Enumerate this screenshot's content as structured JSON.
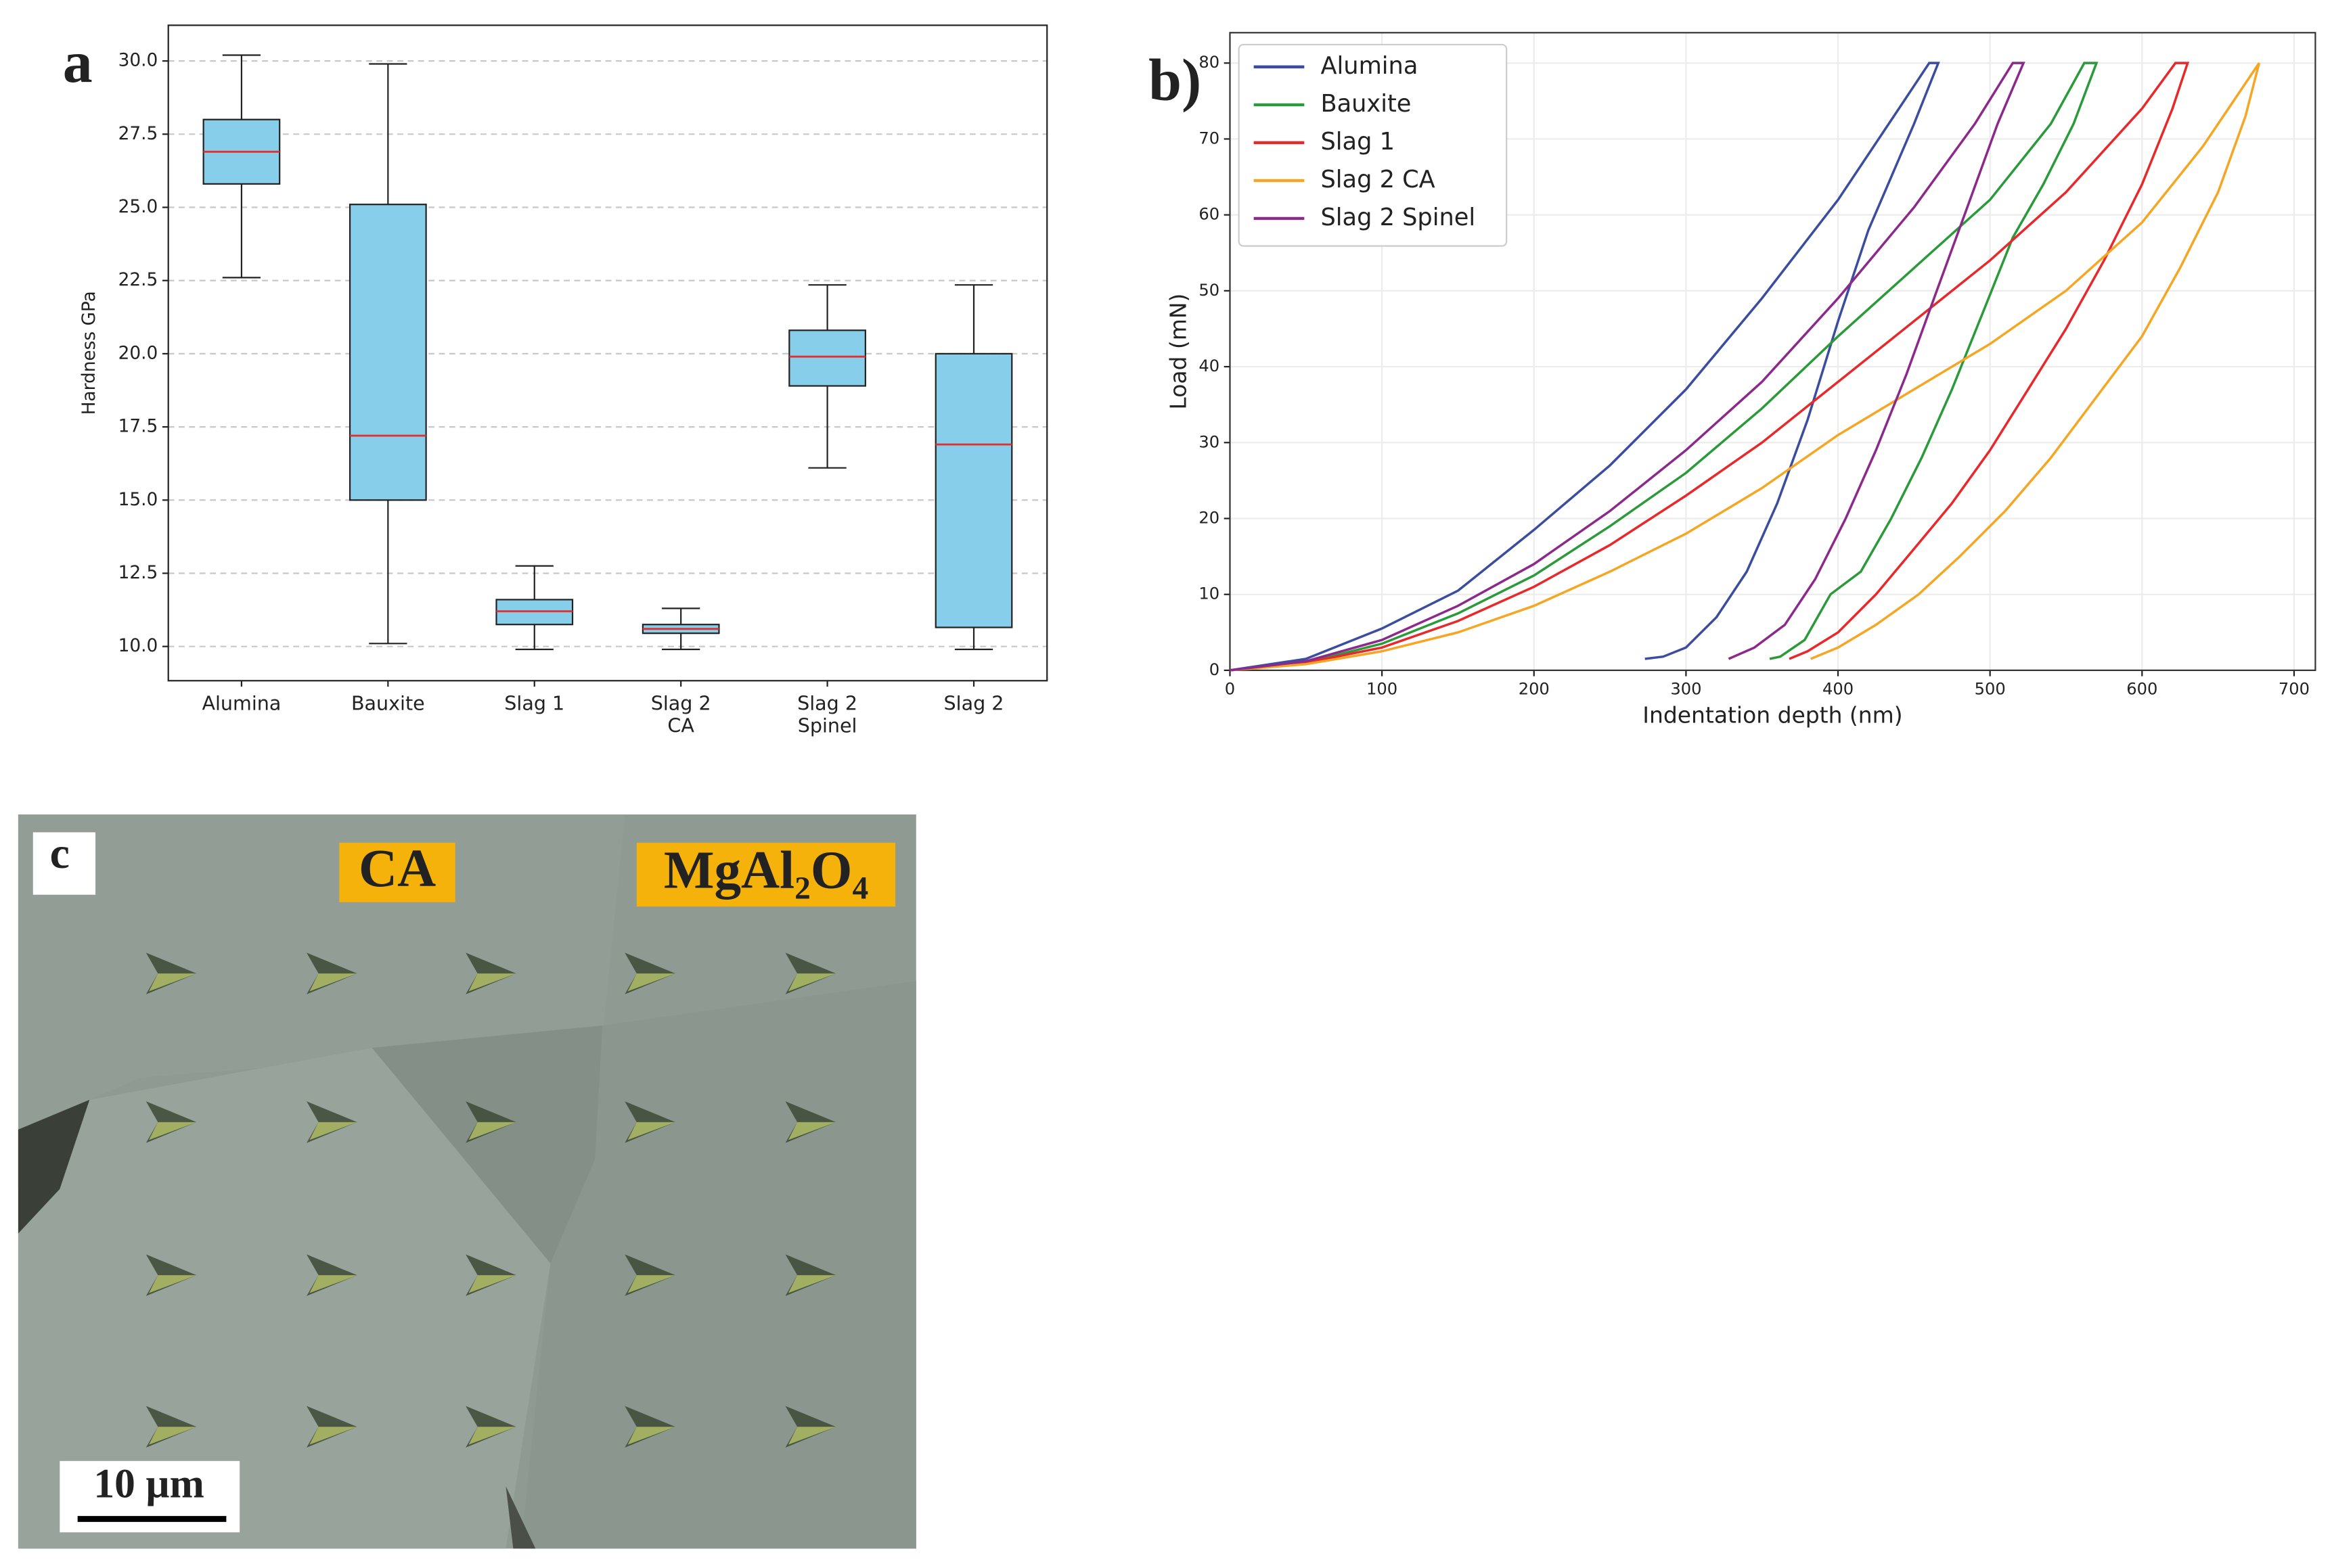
{
  "chart_data": [
    {
      "type": "box",
      "ylabel": "Hardness GPa",
      "categories": [
        "Alumina",
        "Bauxite",
        "Slag 1",
        "Slag 2\nCA",
        "Slag 2\nSpinel",
        "Slag 2"
      ],
      "whisker_low": [
        22.6,
        10.1,
        9.9,
        9.9,
        16.1,
        9.9
      ],
      "q1": [
        25.8,
        15.0,
        10.75,
        10.45,
        18.9,
        10.65
      ],
      "median": [
        26.9,
        17.2,
        11.2,
        10.6,
        19.9,
        16.9
      ],
      "q3": [
        28.0,
        25.1,
        11.6,
        10.75,
        20.8,
        20.0
      ],
      "whisker_high": [
        30.2,
        29.9,
        12.75,
        11.3,
        22.35,
        22.35
      ],
      "color": "#87ceeb",
      "median_color": "#e03030",
      "ylim": [
        8.83,
        31.22
      ],
      "yticks": [
        {
          "value": 10,
          "label": "10.0"
        },
        12.5,
        {
          "value": 15,
          "label": "15.0"
        },
        17.5,
        {
          "value": 20,
          "label": "20.0"
        },
        22.5,
        {
          "value": 25,
          "label": "25.0"
        },
        27.5,
        {
          "value": 30,
          "label": "30.0"
        }
      ],
      "grid": "y"
    },
    {
      "type": "line",
      "xlabel": "Indentation depth (nm)",
      "ylabel": "Load (mN)",
      "xlim": [
        0,
        714
      ],
      "ylim": [
        0,
        84
      ],
      "xticks": [
        0,
        100,
        200,
        300,
        400,
        500,
        600,
        700
      ],
      "yticks": [
        0,
        10,
        20,
        30,
        40,
        50,
        60,
        70,
        80
      ],
      "grid": true,
      "legend": "upper left",
      "series": [
        {
          "name": "Alumina",
          "color": "#3a4d9f",
          "x": [
            0,
            50,
            100,
            150,
            200,
            250,
            300,
            350,
            400,
            440,
            460,
            466,
            450,
            420,
            400,
            380,
            360,
            340,
            320,
            300,
            285,
            273
          ],
          "values": [
            0,
            1.5,
            5.5,
            10.5,
            18.5,
            27,
            37,
            49,
            62,
            74,
            80,
            80,
            72,
            58,
            46,
            33,
            22,
            13,
            7,
            3,
            1.8,
            1.5
          ]
        },
        {
          "name": "Bauxite",
          "color": "#2a9a3a",
          "x": [
            0,
            50,
            100,
            150,
            200,
            250,
            300,
            350,
            400,
            450,
            500,
            540,
            562,
            570,
            555,
            535,
            515,
            495,
            475,
            455,
            435,
            415,
            395,
            378,
            362,
            355
          ],
          "values": [
            0,
            1,
            3.5,
            7.5,
            12.5,
            19,
            26,
            34.5,
            44,
            53,
            62,
            72,
            80,
            80,
            72,
            64,
            57,
            47,
            37,
            28,
            20,
            13,
            10,
            4,
            1.8,
            1.5
          ]
        },
        {
          "name": "Slag 1",
          "color": "#e8282a",
          "x": [
            0,
            50,
            100,
            150,
            200,
            250,
            300,
            350,
            400,
            450,
            500,
            550,
            600,
            622,
            630,
            620,
            600,
            575,
            550,
            525,
            500,
            475,
            450,
            425,
            400,
            380,
            368
          ],
          "values": [
            0,
            1,
            3,
            6.5,
            11,
            16.5,
            23,
            30,
            38,
            46,
            54,
            63,
            74,
            80,
            80,
            74,
            64,
            54,
            45,
            37,
            29,
            22,
            16,
            10,
            5,
            2.5,
            1.5
          ]
        },
        {
          "name": "Slag 2 CA",
          "color": "#f5a623",
          "x": [
            0,
            50,
            100,
            150,
            200,
            250,
            300,
            350,
            400,
            450,
            500,
            550,
            600,
            640,
            677,
            668,
            650,
            625,
            600,
            570,
            540,
            510,
            480,
            453,
            425,
            400,
            382
          ],
          "values": [
            0,
            0.8,
            2.5,
            5,
            8.5,
            13,
            18,
            24,
            31,
            37,
            43,
            50,
            59,
            69,
            80,
            73,
            63,
            53,
            44,
            36,
            28,
            21,
            15,
            10,
            6,
            3,
            1.5
          ]
        },
        {
          "name": "Slag 2 Spinel",
          "color": "#8b2a8b",
          "x": [
            0,
            50,
            100,
            150,
            200,
            250,
            300,
            350,
            400,
            450,
            490,
            515,
            522,
            505,
            485,
            465,
            445,
            425,
            405,
            385,
            365,
            345,
            328
          ],
          "values": [
            0,
            1.2,
            4,
            8.5,
            14,
            21,
            29,
            38,
            49,
            61,
            72,
            80,
            80,
            72,
            61,
            50,
            39,
            29,
            20,
            12,
            6,
            3,
            1.5
          ]
        }
      ]
    }
  ],
  "panel_labels": [
    "a",
    "b)",
    "c"
  ],
  "micrograph": {
    "labels": [
      "CA",
      "MgAl₂O₄"
    ],
    "scale_bar": "10 µm"
  }
}
